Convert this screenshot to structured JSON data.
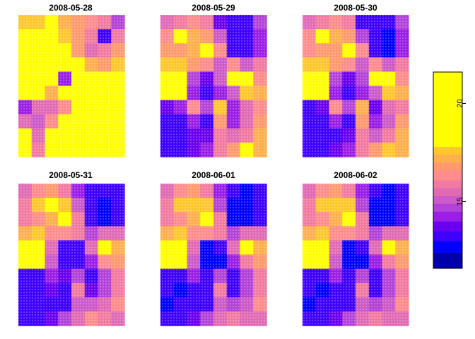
{
  "chart_data": {
    "type": "heatmap",
    "title": "",
    "panels": [
      {
        "date": "2008-05-28",
        "grid": [
          [
            17.6,
            17.4,
            17.8,
            17.3,
            16.7,
            16.2,
            15.9,
            14.8
          ],
          [
            18.0,
            20.5,
            17.8,
            17.6,
            16.6,
            15.9,
            13.0,
            15.8
          ],
          [
            18.3,
            19.2,
            18.6,
            18.1,
            16.8,
            15.4,
            15.8,
            16.9
          ],
          [
            19.3,
            20.4,
            19.8,
            18.7,
            17.8,
            17.3,
            16.7,
            17.4
          ],
          [
            19.6,
            20.2,
            20.1,
            14.2,
            19.8,
            20.3,
            19.4,
            19.2
          ],
          [
            19.8,
            18.6,
            17.0,
            19.1,
            20.2,
            20.4,
            20.6,
            20.8
          ],
          [
            14.0,
            15.4,
            15.6,
            16.1,
            20.3,
            20.3,
            19.9,
            18.4
          ],
          [
            15.3,
            15.0,
            16.4,
            19.8,
            20.1,
            20.0,
            19.1,
            19.6
          ],
          [
            19.3,
            15.3,
            19.5,
            20.1,
            20.4,
            19.2,
            20.4,
            20.2
          ],
          [
            18.9,
            15.8,
            18.3,
            19.8,
            20.1,
            20.6,
            20.8,
            20.2
          ]
        ]
      },
      {
        "date": "2008-05-29",
        "grid": [
          [
            15.5,
            15.8,
            16.2,
            15.8,
            13.5,
            13.1,
            13.2,
            14.6
          ],
          [
            16.3,
            18.0,
            17.1,
            16.8,
            14.9,
            13.4,
            13.0,
            14.2
          ],
          [
            16.6,
            16.8,
            17.0,
            18.0,
            16.4,
            13.3,
            13.0,
            14.2
          ],
          [
            17.5,
            17.7,
            16.7,
            16.5,
            15.2,
            16.3,
            15.1,
            15.8
          ],
          [
            19.7,
            20.2,
            14.7,
            13.6,
            14.9,
            19.2,
            18.2,
            16.4
          ],
          [
            20.3,
            19.8,
            14.1,
            13.1,
            14.4,
            15.1,
            17.7,
            17.2
          ],
          [
            13.5,
            14.0,
            16.2,
            14.6,
            17.4,
            14.0,
            15.6,
            16.1
          ],
          [
            13.3,
            13.4,
            14.2,
            13.2,
            16.7,
            14.4,
            15.3,
            16.8
          ],
          [
            13.1,
            13.2,
            13.5,
            13.6,
            15.8,
            15.3,
            15.9,
            17.3
          ],
          [
            13.2,
            13.3,
            13.6,
            14.2,
            15.9,
            16.8,
            17.8,
            17.3
          ]
        ]
      },
      {
        "date": "2008-05-30",
        "grid": [
          [
            15.4,
            15.7,
            16.1,
            15.7,
            13.4,
            13.0,
            13.1,
            14.5
          ],
          [
            16.2,
            17.9,
            17.0,
            16.7,
            14.8,
            13.3,
            12.9,
            14.1
          ],
          [
            16.5,
            16.7,
            16.9,
            17.9,
            16.3,
            13.2,
            12.9,
            14.1
          ],
          [
            17.4,
            17.6,
            16.6,
            16.4,
            15.1,
            16.2,
            15.0,
            15.7
          ],
          [
            19.6,
            20.1,
            14.6,
            13.5,
            14.8,
            19.1,
            18.1,
            16.3
          ],
          [
            20.2,
            19.7,
            14.0,
            13.0,
            14.3,
            15.0,
            17.6,
            17.1
          ],
          [
            13.4,
            13.9,
            16.1,
            14.5,
            17.3,
            13.9,
            15.5,
            16.0
          ],
          [
            13.2,
            13.3,
            14.1,
            13.1,
            16.6,
            14.3,
            15.2,
            16.7
          ],
          [
            13.0,
            13.1,
            13.4,
            13.5,
            15.7,
            15.2,
            15.8,
            17.2
          ],
          [
            13.1,
            13.2,
            13.5,
            14.1,
            15.8,
            16.7,
            17.7,
            17.2
          ]
        ]
      },
      {
        "date": "2008-05-31",
        "grid": [
          [
            15.6,
            16.4,
            16.7,
            15.9,
            14.4,
            13.4,
            13.0,
            13.4
          ],
          [
            16.0,
            17.5,
            17.8,
            17.6,
            14.9,
            13.0,
            12.8,
            13.2
          ],
          [
            15.8,
            16.5,
            17.3,
            18.1,
            15.9,
            13.0,
            12.8,
            13.3
          ],
          [
            17.2,
            17.6,
            16.3,
            16.5,
            15.8,
            14.6,
            15.6,
            15.6
          ],
          [
            19.8,
            20.0,
            15.5,
            13.0,
            13.1,
            15.6,
            19.6,
            17.2
          ],
          [
            18.4,
            18.6,
            15.0,
            13.0,
            13.0,
            14.4,
            16.1,
            16.8
          ],
          [
            13.3,
            13.2,
            14.3,
            13.5,
            14.6,
            13.4,
            14.8,
            15.9
          ],
          [
            13.1,
            13.0,
            13.5,
            13.1,
            15.8,
            13.5,
            14.8,
            15.8
          ],
          [
            13.0,
            13.1,
            13.4,
            13.3,
            15.1,
            14.9,
            15.3,
            16.2
          ],
          [
            13.1,
            13.2,
            13.6,
            14.6,
            15.4,
            16.1,
            15.7,
            15.6
          ]
        ]
      },
      {
        "date": "2008-06-01",
        "grid": [
          [
            15.5,
            16.3,
            16.6,
            15.8,
            14.3,
            13.3,
            12.9,
            13.3
          ],
          [
            15.9,
            17.4,
            17.7,
            17.5,
            14.8,
            12.9,
            12.7,
            13.1
          ],
          [
            15.7,
            16.4,
            17.2,
            18.0,
            15.8,
            12.9,
            12.7,
            13.2
          ],
          [
            17.1,
            17.5,
            16.2,
            16.4,
            15.7,
            14.5,
            15.5,
            15.5
          ],
          [
            19.7,
            19.9,
            15.4,
            12.9,
            13.0,
            15.5,
            19.5,
            17.1
          ],
          [
            18.3,
            18.5,
            14.9,
            12.9,
            12.9,
            14.3,
            16.0,
            16.7
          ],
          [
            13.2,
            13.1,
            14.2,
            13.4,
            14.5,
            13.3,
            14.7,
            15.8
          ],
          [
            13.0,
            12.9,
            13.4,
            13.0,
            15.7,
            13.4,
            14.7,
            15.7
          ],
          [
            12.9,
            13.0,
            13.3,
            13.2,
            15.0,
            14.8,
            15.2,
            16.1
          ],
          [
            13.0,
            13.1,
            13.5,
            14.5,
            15.3,
            16.0,
            15.6,
            15.5
          ]
        ]
      },
      {
        "date": "2008-06-02",
        "grid": [
          [
            15.5,
            16.3,
            16.6,
            15.8,
            14.3,
            13.3,
            12.9,
            13.3
          ],
          [
            15.9,
            17.4,
            17.7,
            17.5,
            14.8,
            12.9,
            12.7,
            13.1
          ],
          [
            15.7,
            16.4,
            17.2,
            18.0,
            15.8,
            12.9,
            12.7,
            13.2
          ],
          [
            17.1,
            17.5,
            16.2,
            16.4,
            15.7,
            14.5,
            15.5,
            15.5
          ],
          [
            19.7,
            19.9,
            15.4,
            12.9,
            13.0,
            15.5,
            19.5,
            17.1
          ],
          [
            18.3,
            18.5,
            14.9,
            12.9,
            12.9,
            14.3,
            16.0,
            16.7
          ],
          [
            13.2,
            13.1,
            14.2,
            13.4,
            14.5,
            13.3,
            14.7,
            15.8
          ],
          [
            13.0,
            12.9,
            13.4,
            13.0,
            15.7,
            13.4,
            14.7,
            15.7
          ],
          [
            12.9,
            13.0,
            13.3,
            13.2,
            15.0,
            14.8,
            15.2,
            16.1
          ],
          [
            13.0,
            13.1,
            13.5,
            14.5,
            15.3,
            16.0,
            15.6,
            15.5
          ]
        ]
      }
    ],
    "colorbar": {
      "range": [
        11.6,
        21.6
      ],
      "ticks": [
        {
          "value": 15,
          "label": "15"
        },
        {
          "value": 20,
          "label": "20"
        }
      ],
      "breaks": [
        11.6,
        12.4,
        13.0,
        13.5,
        14.0,
        14.5,
        14.9,
        15.3,
        15.7,
        16.1,
        16.6,
        17.0,
        17.4,
        17.8,
        21.6
      ],
      "colors": [
        "#0000AA",
        "#0000FF",
        "#3E00FF",
        "#6A00F0",
        "#9A1EE6",
        "#B342D9",
        "#CC5AC8",
        "#E16AB4",
        "#F27AA0",
        "#FF8C8C",
        "#FF9A6E",
        "#FFAF4E",
        "#FFC72E",
        "#FFFF00"
      ]
    }
  }
}
